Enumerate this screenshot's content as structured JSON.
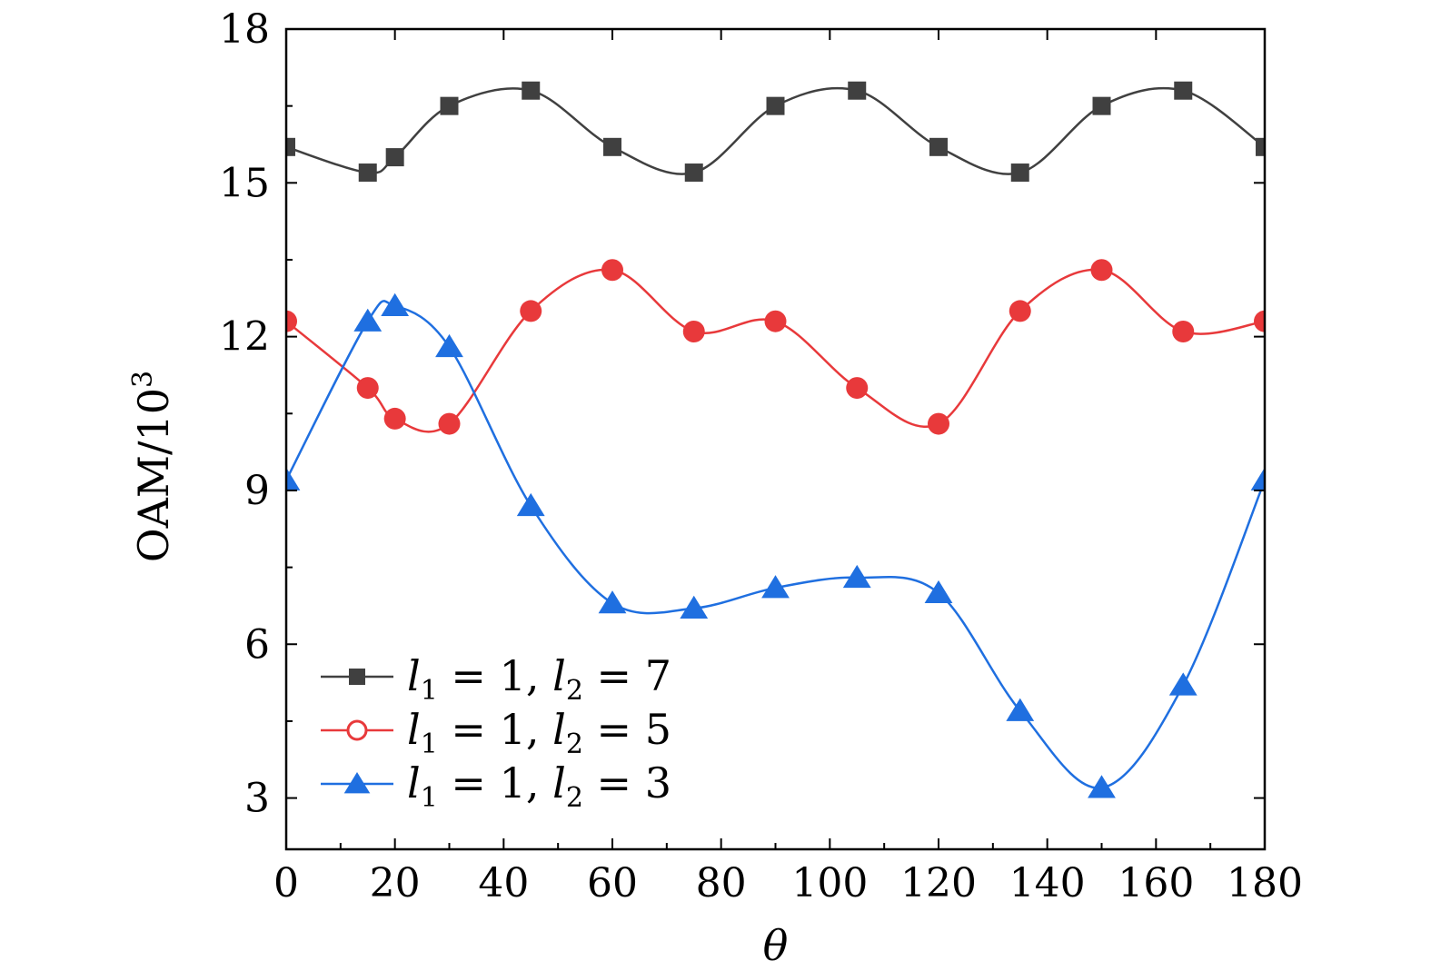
{
  "chart_data": {
    "type": "line",
    "xlabel": "θ",
    "ylabel": "OAM/10",
    "ylabel_superscript": "3",
    "xlim": [
      0,
      180
    ],
    "ylim": [
      2,
      18
    ],
    "x_ticks": [
      0,
      20,
      40,
      60,
      80,
      100,
      120,
      140,
      160,
      180
    ],
    "x_tick_labels": [
      "0",
      "20",
      "40",
      "60",
      "80",
      "100",
      "120",
      "140",
      "160",
      "180"
    ],
    "y_ticks": [
      3,
      6,
      9,
      12,
      15,
      18
    ],
    "y_tick_labels": [
      "3",
      "6",
      "9",
      "12",
      "15",
      "18"
    ],
    "grid": false,
    "legend_position": "bottom-left",
    "series": [
      {
        "name": "l1 = 1, l2 = 7",
        "label_parts": [
          "l",
          "1",
          " = 1, ",
          "l",
          "2",
          " = 7"
        ],
        "color": "#404040",
        "marker": "square",
        "x": [
          0,
          15,
          20,
          30,
          45,
          60,
          75,
          90,
          105,
          120,
          135,
          150,
          165,
          180
        ],
        "values": [
          15.7,
          15.2,
          15.5,
          16.5,
          16.8,
          15.7,
          15.2,
          16.5,
          16.8,
          15.7,
          15.2,
          16.5,
          16.8,
          15.7
        ]
      },
      {
        "name": "l1 = 1, l2 = 5",
        "label_parts": [
          "l",
          "1",
          " = 1, ",
          "l",
          "2",
          " = 5"
        ],
        "color": "#e8393b",
        "marker": "circle",
        "x": [
          0,
          15,
          20,
          30,
          45,
          60,
          75,
          90,
          105,
          120,
          135,
          150,
          165,
          180
        ],
        "values": [
          12.3,
          11.0,
          10.4,
          10.3,
          12.5,
          13.3,
          12.1,
          12.3,
          11.0,
          10.3,
          12.5,
          13.3,
          12.1,
          12.3
        ]
      },
      {
        "name": "l1 = 1, l2 = 3",
        "label_parts": [
          "l",
          "1",
          " = 1, ",
          "l",
          "2",
          " = 3"
        ],
        "color": "#1f6fe0",
        "marker": "triangle",
        "x": [
          0,
          15,
          20,
          30,
          45,
          60,
          75,
          90,
          105,
          120,
          135,
          150,
          165,
          180
        ],
        "values": [
          9.2,
          12.3,
          12.6,
          11.8,
          8.7,
          6.8,
          6.7,
          7.1,
          7.3,
          7.0,
          4.7,
          3.2,
          5.2,
          9.2
        ]
      }
    ]
  }
}
